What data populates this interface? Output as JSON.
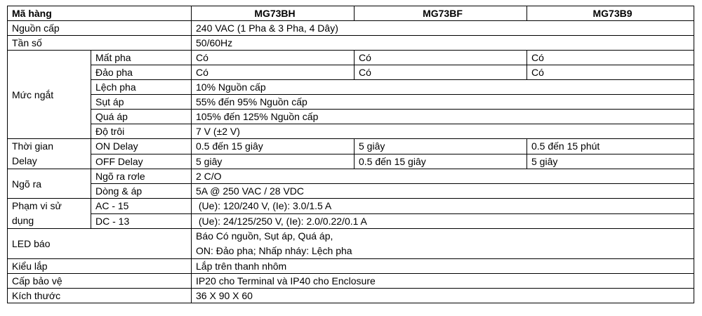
{
  "table": {
    "header": {
      "label": "Mã hàng",
      "models": [
        "MG73BH",
        "MG73BF",
        "MG73B9"
      ]
    },
    "nguon_cap": {
      "label": "Nguồn cấp",
      "value": "240 VAC (1 Pha & 3 Pha, 4 Dây)"
    },
    "tan_so": {
      "label": "Tần số",
      "value": "50/60Hz"
    },
    "muc_ngat": {
      "label": "Mức ngắt",
      "mat_pha": {
        "label": "Mất pha",
        "values": [
          "Có",
          "Có",
          "Có"
        ]
      },
      "dao_pha": {
        "label": "Đảo pha",
        "values": [
          "Có",
          "Có",
          "Có"
        ]
      },
      "lech_pha": {
        "label": "Lệch pha",
        "value": "10% Nguồn cấp"
      },
      "sut_ap": {
        "label": "Sụt áp",
        "value": "55% đến 95% Nguồn cấp"
      },
      "qua_ap": {
        "label": "Quá áp",
        "value": "105% đến 125% Nguồn cấp"
      },
      "do_troi": {
        "label": "Độ trôi",
        "value": "7 V (±2 V)"
      }
    },
    "thoi_gian_delay": {
      "label_line1": "Thời gian",
      "label_line2": "Delay",
      "on_delay": {
        "label": "ON Delay",
        "values": [
          "0.5 đến 15 giây",
          "5 giây",
          "0.5 đến 15 phút"
        ]
      },
      "off_delay": {
        "label": "OFF Delay",
        "values": [
          "5 giây",
          "0.5 đến 15 giây",
          "5 giây"
        ]
      }
    },
    "ngo_ra": {
      "label": "Ngõ ra",
      "ngo_ra_role": {
        "label": "Ngõ ra rơle",
        "value": "2 C/O"
      },
      "dong_ap": {
        "label": "Dòng & áp",
        "value": "5A @ 250 VAC / 28 VDC"
      }
    },
    "pham_vi": {
      "label_line1": "Phạm vi sử",
      "label_line2": "dụng",
      "ac15": {
        "label": "AC - 15",
        "value": " (Ue): 120/240 V, (Ie): 3.0/1.5 A"
      },
      "dc13": {
        "label": "DC - 13",
        "value": " (Ue): 24/125/250 V, (Ie): 2.0/0.22/0.1 A"
      }
    },
    "led_bao": {
      "label": "LED báo",
      "value_line1": "Báo Có nguồn, Sụt áp, Quá áp,",
      "value_line2": "ON: Đảo pha; Nhấp nháy: Lệch pha"
    },
    "kieu_lap": {
      "label": "Kiểu lắp",
      "value": "Lắp trên thanh nhôm"
    },
    "cap_bao_ve": {
      "label": "Cấp bảo vệ",
      "value": "IP20 cho Terminal và IP40 cho Enclosure"
    },
    "kich_thuoc": {
      "label": "Kích thước",
      "value": "36 X 90 X 60"
    }
  }
}
